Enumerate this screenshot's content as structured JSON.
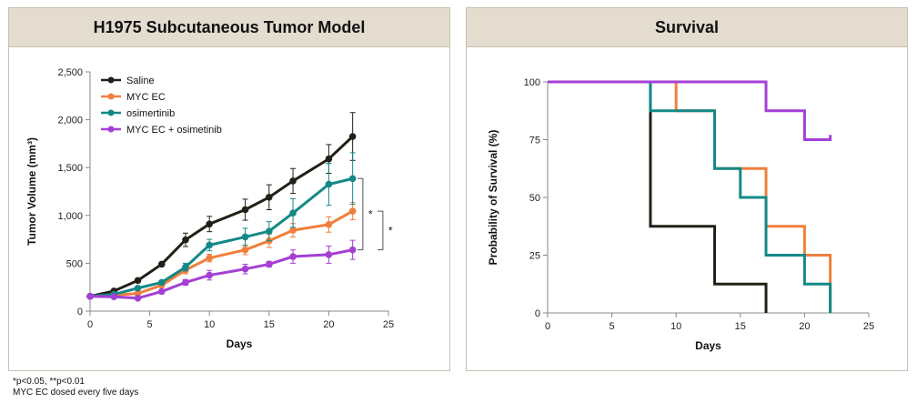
{
  "footnotes": [
    "*p<0.05, **p<0.01",
    "MYC EC dosed every five days"
  ],
  "colors": {
    "saline": "#222016",
    "myc": "#f07f3c",
    "osi": "#138987",
    "combo": "#a43fd6",
    "axis": "#888888"
  },
  "chart_data": [
    {
      "type": "line",
      "title": "H1975 Subcutaneous Tumor Model",
      "xlabel": "Days",
      "ylabel": "Tumor Volume (mm³)",
      "xlim": [
        0,
        25
      ],
      "ylim": [
        0,
        2500
      ],
      "xticks": [
        0,
        5,
        10,
        15,
        20,
        25
      ],
      "yticks": [
        0,
        500,
        1000,
        1500,
        2000,
        2500
      ],
      "ytick_labels": [
        "0",
        "500",
        "1,000",
        "1,500",
        "2,000",
        "2,500"
      ],
      "legend_position": "top-left",
      "series": [
        {
          "name": "Saline",
          "color": "#222016",
          "points": [
            [
              0,
              155
            ],
            [
              2,
              210
            ],
            [
              4,
              320
            ],
            [
              6,
              490
            ],
            [
              8,
              745
            ],
            [
              10,
              910
            ],
            [
              13,
              1060
            ],
            [
              15,
              1190
            ],
            [
              17,
              1360
            ],
            [
              20,
              1590
            ],
            [
              22,
              1825
            ]
          ],
          "errors": [
            0,
            0,
            0,
            0,
            70,
            80,
            110,
            130,
            130,
            150,
            250
          ]
        },
        {
          "name": "MYC EC",
          "color": "#f07f3c",
          "points": [
            [
              0,
              155
            ],
            [
              2,
              165
            ],
            [
              4,
              185
            ],
            [
              6,
              270
            ],
            [
              8,
              430
            ],
            [
              10,
              555
            ],
            [
              13,
              640
            ],
            [
              15,
              735
            ],
            [
              17,
              845
            ],
            [
              20,
              905
            ],
            [
              22,
              1045
            ]
          ],
          "errors": [
            0,
            0,
            0,
            0,
            40,
            40,
            50,
            70,
            70,
            80,
            90
          ]
        },
        {
          "name": "osimertinib",
          "color": "#138987",
          "points": [
            [
              0,
              155
            ],
            [
              2,
              175
            ],
            [
              4,
              240
            ],
            [
              6,
              300
            ],
            [
              8,
              460
            ],
            [
              10,
              690
            ],
            [
              13,
              775
            ],
            [
              15,
              835
            ],
            [
              17,
              1025
            ],
            [
              20,
              1325
            ],
            [
              22,
              1385
            ]
          ],
          "errors": [
            0,
            0,
            0,
            0,
            40,
            60,
            90,
            100,
            150,
            220,
            270
          ]
        },
        {
          "name": "MYC EC + osimetinib",
          "color": "#a43fd6",
          "points": [
            [
              0,
              155
            ],
            [
              2,
              150
            ],
            [
              4,
              135
            ],
            [
              6,
              205
            ],
            [
              8,
              300
            ],
            [
              10,
              375
            ],
            [
              13,
              440
            ],
            [
              15,
              490
            ],
            [
              17,
              570
            ],
            [
              20,
              590
            ],
            [
              22,
              640
            ]
          ],
          "errors": [
            0,
            0,
            0,
            0,
            30,
            50,
            50,
            30,
            70,
            90,
            100
          ]
        }
      ],
      "annotations": [
        "*",
        "*"
      ]
    },
    {
      "type": "line",
      "title": "Survival",
      "xlabel": "Days",
      "ylabel": "Probability of Survival (%)",
      "xlim": [
        0,
        25
      ],
      "ylim": [
        0,
        100
      ],
      "xticks": [
        0,
        5,
        10,
        15,
        20,
        25
      ],
      "yticks": [
        0,
        25,
        50,
        75,
        100
      ],
      "ytick_labels": [
        "0",
        "25",
        "50",
        "75",
        "100"
      ],
      "series": [
        {
          "name": "Saline",
          "color": "#222016",
          "steps": [
            [
              0,
              100
            ],
            [
              8,
              100
            ],
            [
              8,
              37.5
            ],
            [
              13,
              37.5
            ],
            [
              13,
              12.5
            ],
            [
              17,
              12.5
            ],
            [
              17,
              0
            ]
          ]
        },
        {
          "name": "MYC EC",
          "color": "#f07f3c",
          "steps": [
            [
              0,
              100
            ],
            [
              10,
              100
            ],
            [
              10,
              87.5
            ],
            [
              13,
              87.5
            ],
            [
              13,
              62.5
            ],
            [
              17,
              62.5
            ],
            [
              17,
              37.5
            ],
            [
              20,
              37.5
            ],
            [
              20,
              25
            ],
            [
              22,
              25
            ],
            [
              22,
              0
            ]
          ]
        },
        {
          "name": "osimertinib",
          "color": "#138987",
          "steps": [
            [
              0,
              100
            ],
            [
              8,
              100
            ],
            [
              8,
              87.5
            ],
            [
              13,
              87.5
            ],
            [
              13,
              62.5
            ],
            [
              15,
              62.5
            ],
            [
              15,
              50
            ],
            [
              17,
              50
            ],
            [
              17,
              25
            ],
            [
              20,
              25
            ],
            [
              20,
              12.5
            ],
            [
              22,
              12.5
            ],
            [
              22,
              0
            ]
          ]
        },
        {
          "name": "MYC EC + osimetinib",
          "color": "#a43fd6",
          "steps": [
            [
              0,
              100
            ],
            [
              17,
              100
            ],
            [
              17,
              87.5
            ],
            [
              20,
              87.5
            ],
            [
              20,
              75
            ],
            [
              22,
              75
            ],
            [
              22,
              77
            ]
          ]
        }
      ]
    }
  ]
}
